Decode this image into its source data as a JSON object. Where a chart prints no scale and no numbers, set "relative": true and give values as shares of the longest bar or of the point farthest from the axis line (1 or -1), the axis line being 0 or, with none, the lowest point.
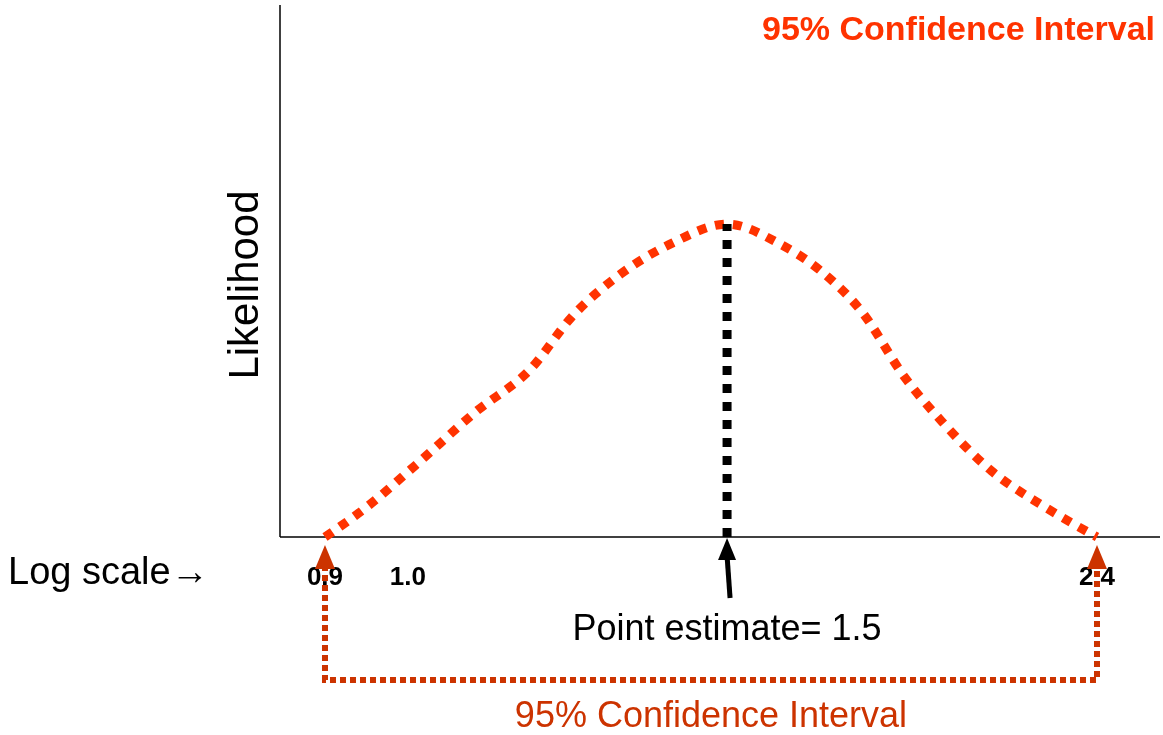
{
  "chart_data": {
    "type": "line",
    "title": "95% Confidence Interval",
    "ylabel": "Likelihood",
    "xlabel": "Log scale→",
    "relative": true,
    "log": "x",
    "xlim": [
      0.85,
      2.6
    ],
    "xticks": [
      0.9,
      {
        "value": 1,
        "label": "1.0"
      },
      2.4
    ],
    "grid": false,
    "marker": "none",
    "line_style": "dotted",
    "x": [
      0.9,
      0.951,
      1.01,
      1.09,
      1.17,
      1.23,
      1.31,
      1.4,
      1.5,
      1.6,
      1.69,
      1.78,
      1.88,
      1.97,
      2.1,
      2.24,
      2.4
    ],
    "series": [
      {
        "color": "#ff3300",
        "values": [
          0,
          0.1,
          0.23,
          0.4,
          0.54,
          0.7,
          0.84,
          0.94,
          1,
          0.94,
          0.85,
          0.72,
          0.51,
          0.37,
          0.21,
          0.1,
          0
        ]
      }
    ],
    "ref_lines": [
      {
        "axis": "x",
        "value": 1.5,
        "color": "#000000",
        "line_style": "dotted"
      }
    ],
    "annotations": [
      {
        "text": "Point estimate= 1.5",
        "x": 1.5,
        "y": 0
      },
      "95% Confidence Interval"
    ]
  }
}
